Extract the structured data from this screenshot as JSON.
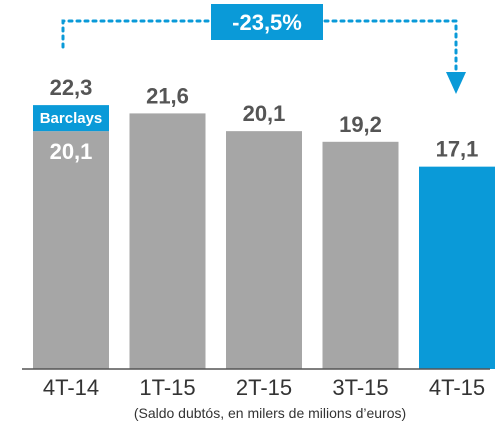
{
  "chart_data": {
    "type": "bar",
    "categories": [
      "4T-14",
      "1T-15",
      "2T-15",
      "3T-15",
      "4T-15"
    ],
    "values": [
      22.3,
      21.6,
      20.1,
      19.2,
      17.1
    ],
    "value_labels": [
      "22,3",
      "21,6",
      "20,1",
      "19,2",
      "17,1"
    ],
    "first_bar_breakdown": {
      "base_value": 20.1,
      "base_label": "20,1",
      "added_segment_label": "Barclays"
    },
    "change_label": "-23,5%",
    "note": "(Saldo dubtós, en milers de milions d’euros)",
    "ylim": [
      0,
      24
    ],
    "grid": false,
    "colors": {
      "bar": "#a6a6a6",
      "highlight": "#0a9ad8",
      "badge": "#0a9ad8",
      "value_text": "#555555",
      "axis": "#555555"
    }
  }
}
